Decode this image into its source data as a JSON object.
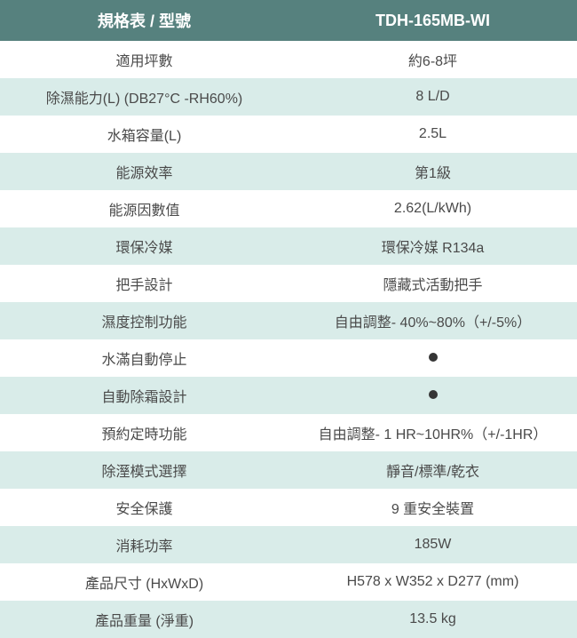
{
  "table": {
    "header": {
      "label": "規格表 / 型號",
      "value": "TDH-165MB-WI"
    },
    "rows": [
      {
        "label": "適用坪數",
        "value": "約6-8坪",
        "bg": "white"
      },
      {
        "label": "除濕能力(L) (DB27°C -RH60%)",
        "value": "8 L/D",
        "bg": "mint"
      },
      {
        "label": "水箱容量(L)",
        "value": "2.5L",
        "bg": "white"
      },
      {
        "label": "能源效率",
        "value": "第1級",
        "bg": "mint"
      },
      {
        "label": "能源因數值",
        "value": "2.62(L/kWh)",
        "bg": "white"
      },
      {
        "label": "環保冷媒",
        "value": "環保冷媒 R134a",
        "bg": "mint"
      },
      {
        "label": "把手設計",
        "value": "隱藏式活動把手",
        "bg": "white"
      },
      {
        "label": "濕度控制功能",
        "value": "自由調整- 40%~80%（+/-5%）",
        "bg": "mint"
      },
      {
        "label": "水滿自動停止",
        "value": "●",
        "bg": "white",
        "dot": true
      },
      {
        "label": "自動除霜設計",
        "value": "●",
        "bg": "mint",
        "dot": true
      },
      {
        "label": "預約定時功能",
        "value": "自由調整- 1 HR~10HR%（+/-1HR）",
        "bg": "white"
      },
      {
        "label": "除溼模式選擇",
        "value": "靜音/標準/乾衣",
        "bg": "mint"
      },
      {
        "label": "安全保護",
        "value": "9 重安全裝置",
        "bg": "white"
      },
      {
        "label": "消耗功率",
        "value": "185W",
        "bg": "mint"
      },
      {
        "label": "產品尺寸 (HxWxD)",
        "value": "H578 x W352 x D277 (mm)",
        "bg": "white"
      },
      {
        "label": "產品重量 (淨重)",
        "value": "13.5 kg",
        "bg": "mint"
      }
    ]
  },
  "colors": {
    "header_bg": "#56817e",
    "header_text": "#ffffff",
    "row_white": "#ffffff",
    "row_mint": "#d9ece9",
    "text": "#4a4a4a",
    "dot": "#353535"
  }
}
